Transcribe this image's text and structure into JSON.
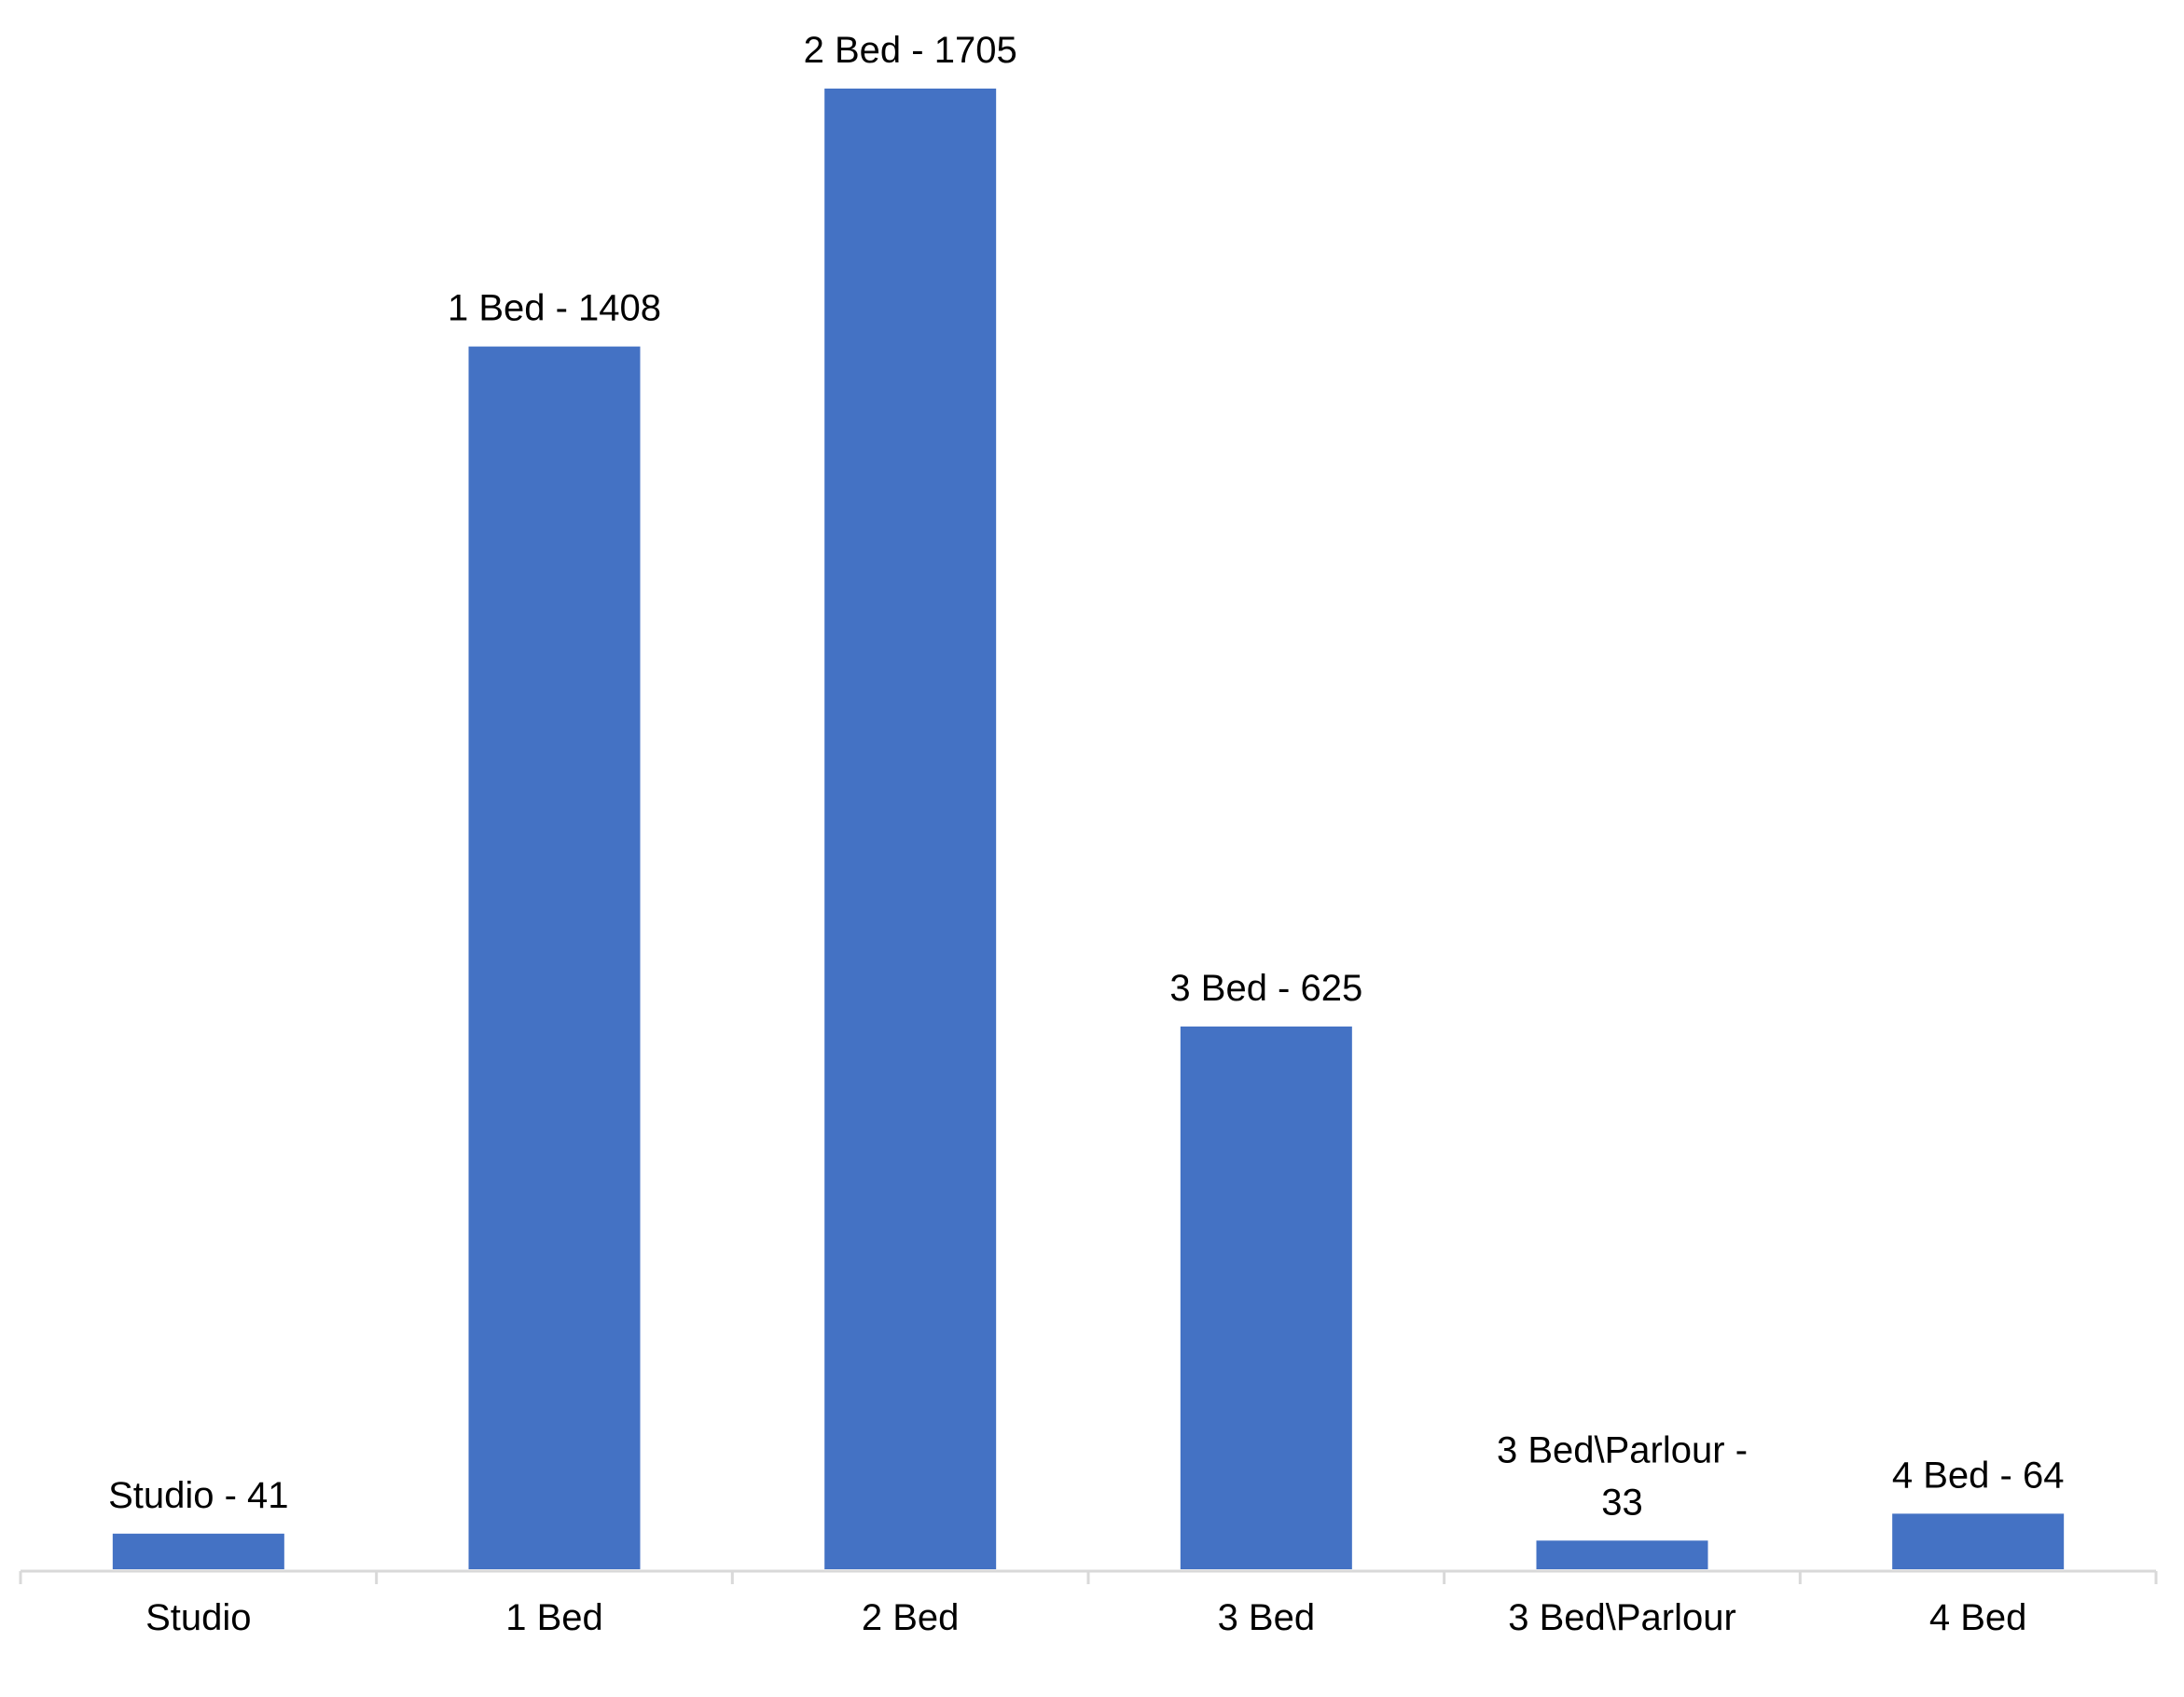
{
  "chart_data": {
    "type": "bar",
    "title": "",
    "xlabel": "",
    "ylabel": "",
    "categories": [
      "Studio",
      "1 Bed",
      "2 Bed",
      "3 Bed",
      "3 Bed\\Parlour",
      "4 Bed"
    ],
    "values": [
      41,
      1408,
      1705,
      625,
      33,
      64
    ],
    "data_labels": [
      [
        "Studio - 41"
      ],
      [
        "1 Bed - 1408"
      ],
      [
        "2 Bed - 1705"
      ],
      [
        "3 Bed - 625"
      ],
      [
        "3 Bed\\Parlour -",
        "33"
      ],
      [
        "4 Bed - 64"
      ]
    ],
    "ylim": [
      0,
      1705
    ],
    "grid": false,
    "legend": "none",
    "y_axis_visible": false,
    "bar_color": "#4472C4",
    "axis_color": "#D9D9D9"
  }
}
